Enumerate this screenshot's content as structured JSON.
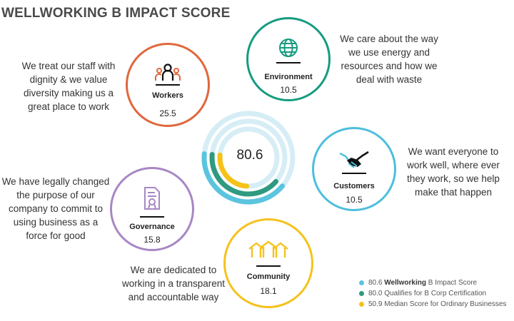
{
  "title": "WELLWORKING B IMPACT SCORE",
  "colors": {
    "wellworking": "#5bc4df",
    "qualifies": "#2f9a80",
    "median": "#f6c217",
    "track": "#d6edf6",
    "workers": "#e0673d",
    "environment": "#169b80",
    "customers": "#4cbfdc",
    "governance": "#a787c4",
    "community": "#f5c21e"
  },
  "chart_data": {
    "type": "radial-bar",
    "max": 200,
    "center_value": "80.6",
    "series": [
      {
        "name": "Wellworking B Impact Score",
        "value": 80.6,
        "color": "#5bc4df"
      },
      {
        "name": "Qualifies for B Corp Certification",
        "value": 80.0,
        "color": "#2f9a80"
      },
      {
        "name": "Median Score for Ordinary Businesses",
        "value": 50.9,
        "color": "#f6c217"
      }
    ],
    "categories": [
      {
        "name": "Workers",
        "score": "25.5",
        "icon": "workers-icon",
        "description": "We treat our staff with dignity & we value diversity making us a great place to work"
      },
      {
        "name": "Environment",
        "score": "10.5",
        "icon": "globe-icon",
        "description": "We care about the way we use energy and resources and how we deal with waste"
      },
      {
        "name": "Customers",
        "score": "10.5",
        "icon": "handshake-icon",
        "description": "We want everyone to work well, where ever they work, so we help make that happen"
      },
      {
        "name": "Governance",
        "score": "15.8",
        "icon": "certificate-icon",
        "description": "We have legally changed the purpose of our company to commit to using business as a force for good"
      },
      {
        "name": "Community",
        "score": "18.1",
        "icon": "houses-icon",
        "description": "We are dedicated to working in a transparent and accountable way"
      }
    ],
    "legend": [
      {
        "value": "80.6",
        "bold": "Wellworking",
        "rest": "B Impact Score",
        "color": "#5bc4df"
      },
      {
        "value": "80.0",
        "bold": "",
        "rest": "Qualifies for B Corp Certification",
        "color": "#2f9a80"
      },
      {
        "value": "50.9",
        "bold": "",
        "rest": "Median Score for Ordinary Businesses",
        "color": "#f6c217"
      }
    ]
  }
}
